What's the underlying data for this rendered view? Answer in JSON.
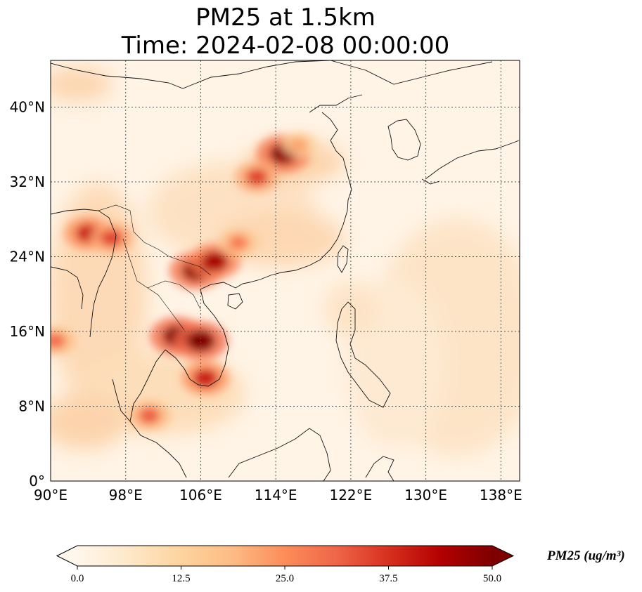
{
  "title": {
    "line1": "PM25 at 1.5km",
    "line2": "Time: 2024-02-08 00:00:00"
  },
  "map": {
    "type": "heatmap",
    "projection": "PlateCarree",
    "lon_range": [
      90,
      140
    ],
    "lat_range": [
      0,
      45
    ],
    "gridlines": "dotted",
    "x_ticks": [
      {
        "value": 90,
        "label": "90°E"
      },
      {
        "value": 98,
        "label": "98°E"
      },
      {
        "value": 106,
        "label": "106°E"
      },
      {
        "value": 114,
        "label": "114°E"
      },
      {
        "value": 122,
        "label": "122°E"
      },
      {
        "value": 130,
        "label": "130°E"
      },
      {
        "value": 138,
        "label": "138°E"
      }
    ],
    "y_ticks": [
      {
        "value": 0,
        "label": "0°"
      },
      {
        "value": 8,
        "label": "8°N"
      },
      {
        "value": 16,
        "label": "16°N"
      },
      {
        "value": 24,
        "label": "24°N"
      },
      {
        "value": 32,
        "label": "32°N"
      },
      {
        "value": 40,
        "label": "40°N"
      }
    ],
    "colormap": "OrRd",
    "hotspots": [
      {
        "lon": 103.5,
        "lat": 15.5,
        "value": 50
      },
      {
        "lon": 106.0,
        "lat": 15.0,
        "value": 50
      },
      {
        "lon": 105.5,
        "lat": 22.5,
        "value": 48
      },
      {
        "lon": 107.5,
        "lat": 23.5,
        "value": 45
      },
      {
        "lon": 114.8,
        "lat": 35.0,
        "value": 48
      },
      {
        "lon": 112.0,
        "lat": 32.5,
        "value": 35
      },
      {
        "lon": 94.0,
        "lat": 26.5,
        "value": 40
      },
      {
        "lon": 96.5,
        "lat": 26.0,
        "value": 35
      },
      {
        "lon": 100.5,
        "lat": 7.0,
        "value": 32
      },
      {
        "lon": 106.5,
        "lat": 11.0,
        "value": 40
      },
      {
        "lon": 90.5,
        "lat": 15.0,
        "value": 30
      },
      {
        "lon": 110.0,
        "lat": 25.5,
        "value": 28
      },
      {
        "lon": 116.5,
        "lat": 36.0,
        "value": 22
      }
    ]
  },
  "colorbar": {
    "label": "PM25 (ug/m³)",
    "ticks": [
      "0.0",
      "12.5",
      "25.0",
      "37.5",
      "50.0"
    ],
    "min": 0,
    "max": 50,
    "extend": "both",
    "colors": [
      "#fff7ec",
      "#fee8c8",
      "#fdd49e",
      "#fdbb84",
      "#fc8d59",
      "#ef6548",
      "#d7301f",
      "#b30000",
      "#7f0000"
    ]
  }
}
